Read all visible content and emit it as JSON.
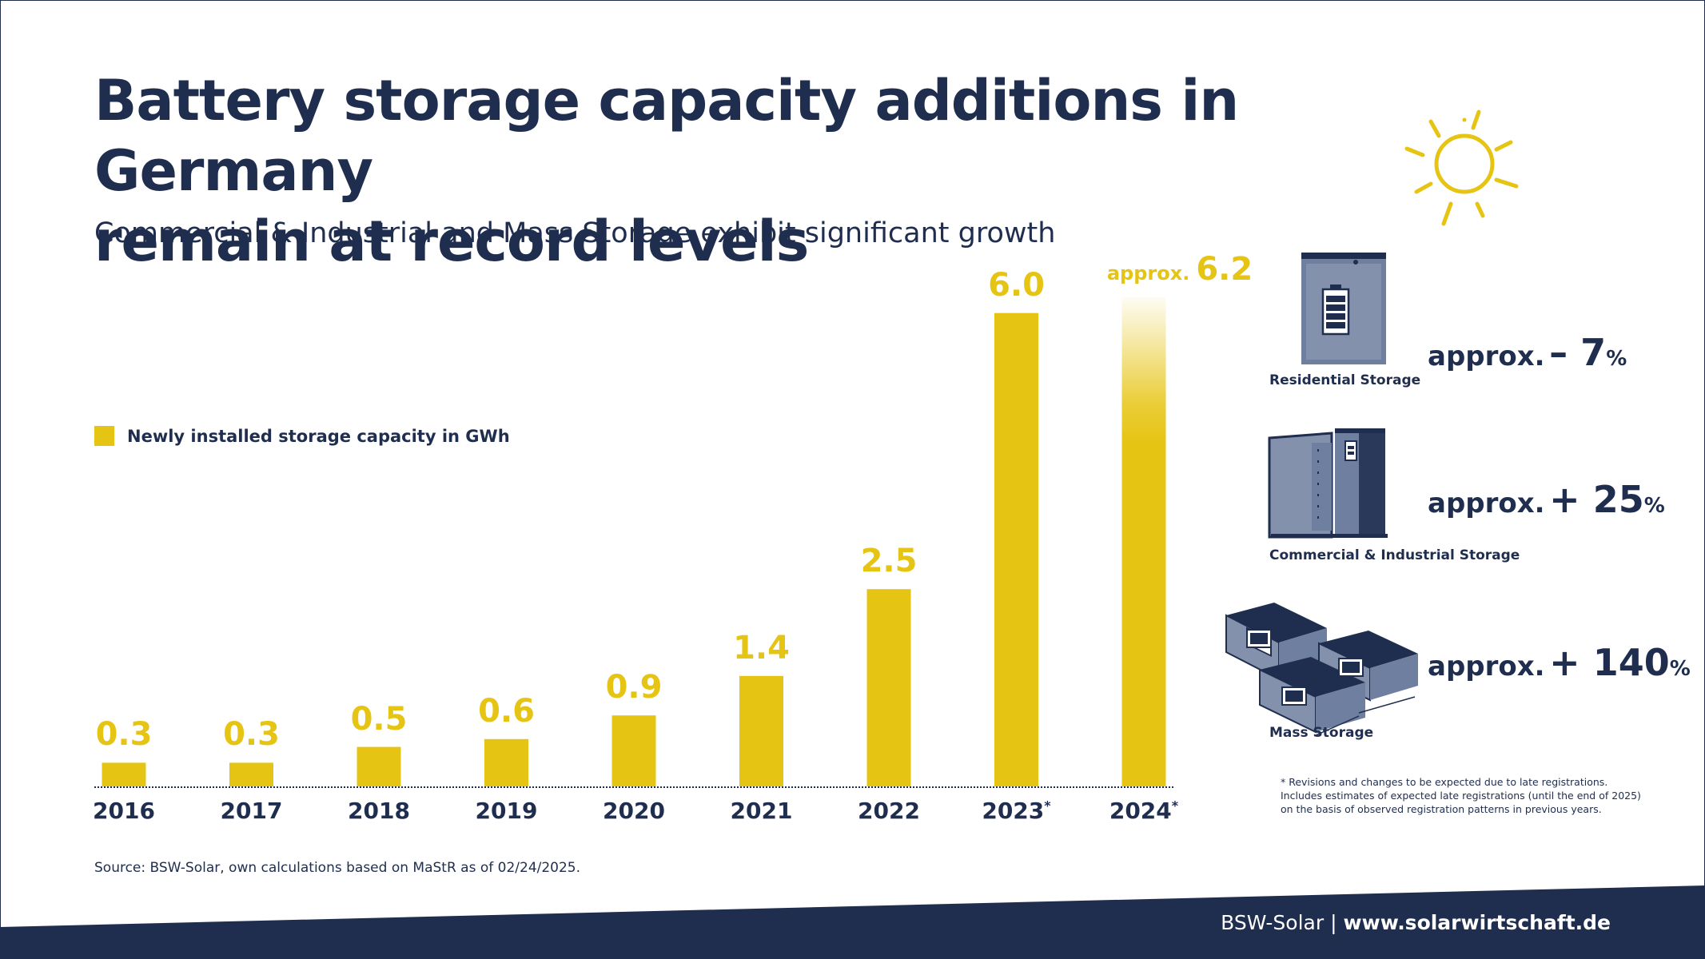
{
  "title_line1": "Battery storage capacity additions in Germany",
  "title_line2": "remain at record levels",
  "subtitle": "Commercial & Industrial and Mass Storage exhibit significant growth",
  "legend_label": "Newly installed storage capacity in GWh",
  "colors": {
    "bar": "#e6c413",
    "navy": "#1f2d4e",
    "steel": "#6f7f9f"
  },
  "chart_data": {
    "type": "bar",
    "categories": [
      "2016",
      "2017",
      "2018",
      "2019",
      "2020",
      "2021",
      "2022",
      "2023",
      "2024"
    ],
    "category_markers": [
      "",
      "",
      "",
      "",
      "",
      "",
      "",
      "*",
      "*"
    ],
    "values": [
      0.3,
      0.3,
      0.5,
      0.6,
      0.9,
      1.4,
      2.5,
      6.0,
      6.2
    ],
    "value_labels": [
      "0.3",
      "0.3",
      "0.5",
      "0.6",
      "0.9",
      "1.4",
      "2.5",
      "6.0",
      "6.2"
    ],
    "value_prefixes": [
      "",
      "",
      "",
      "",
      "",
      "",
      "",
      "",
      "approx."
    ],
    "estimated": [
      false,
      false,
      false,
      false,
      false,
      false,
      false,
      false,
      true
    ],
    "ylim": [
      0,
      6.2
    ]
  },
  "segments": [
    {
      "name": "Residential Storage",
      "prefix": "approx.",
      "change": "– 7",
      "unit": "%",
      "icon": "residential-storage-icon"
    },
    {
      "name": "Commercial & Industrial Storage",
      "prefix": "approx.",
      "change": "+ 25",
      "unit": "%",
      "icon": "commercial-storage-icon"
    },
    {
      "name": "Mass Storage",
      "prefix": "approx.",
      "change": "+ 140",
      "unit": "%",
      "icon": "mass-storage-icon"
    }
  ],
  "footnote_line1": "* Revisions and changes to be expected due to late registrations.",
  "footnote_line2": "Includes estimates of expected late registrations (until the end of 2025)",
  "footnote_line3": "on the basis of observed registration patterns in previous years.",
  "source": "Source: BSW-Solar, own calculations based on MaStR as of 02/24/2025.",
  "footer_org": "BSW-Solar",
  "footer_separator": "|",
  "footer_url": "www.solarwirtschaft.de"
}
